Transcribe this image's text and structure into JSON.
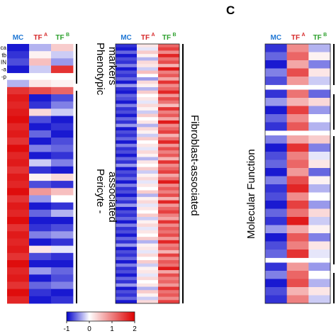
{
  "chart_data": {
    "type": "heatmap",
    "panel_letter": "C",
    "columns": [
      {
        "main": "MC",
        "sup": "",
        "color": "#1f77d4"
      },
      {
        "main": "TF",
        "sup": "A",
        "color": "#d62728"
      },
      {
        "main": "TF",
        "sup": "B",
        "color": "#2ca02c"
      }
    ],
    "row_labels_left": [
      "ca",
      "tb",
      "IN",
      "-a",
      "-p"
    ],
    "group_labels": {
      "phenotypic": "Phenotypic markers",
      "pericyte": "Pericyte - associated",
      "fibroblast": "Fibroblast-associated",
      "molecular": "Molecular Function"
    },
    "colorbar": {
      "colors": [
        "#0000cc",
        "#ffffff",
        "#dd0000"
      ],
      "range": [
        -1,
        2
      ],
      "ticks": [
        -1,
        0,
        1,
        2
      ]
    },
    "panels": [
      {
        "id": "left",
        "values": [
          [
            -0.9,
            -0.3,
            0.4
          ],
          [
            -0.8,
            0.1,
            -0.2
          ],
          [
            -0.7,
            0.5,
            -0.4
          ],
          [
            -0.9,
            -0.2,
            1.6
          ],
          [
            -0.3,
            0.2,
            0.1
          ],
          [
            1.6,
            1.4,
            1.2
          ],
          [
            1.8,
            -0.9,
            -0.7
          ],
          [
            1.7,
            -0.8,
            -0.5
          ],
          [
            1.8,
            0.3,
            -0.2
          ],
          [
            1.9,
            -0.7,
            -0.9
          ],
          [
            1.7,
            -0.9,
            -0.8
          ],
          [
            1.8,
            -0.6,
            -0.9
          ],
          [
            1.6,
            -0.9,
            -0.7
          ],
          [
            1.9,
            -0.5,
            -0.6
          ],
          [
            1.7,
            -0.9,
            -0.8
          ],
          [
            1.8,
            -0.2,
            -0.5
          ],
          [
            1.6,
            -0.8,
            -0.9
          ],
          [
            1.8,
            0.1,
            0.3
          ],
          [
            1.7,
            -0.7,
            -0.8
          ],
          [
            1.9,
            0.8,
            0.5
          ],
          [
            1.6,
            -0.4,
            0.0
          ],
          [
            1.8,
            -0.9,
            -0.8
          ],
          [
            1.7,
            -0.6,
            -0.3
          ],
          [
            1.9,
            -0.9,
            -0.9
          ],
          [
            1.6,
            -0.8,
            -0.7
          ],
          [
            1.8,
            -0.5,
            -0.4
          ],
          [
            1.7,
            -0.9,
            -0.8
          ],
          [
            1.8,
            0.2,
            -0.1
          ],
          [
            1.6,
            -0.7,
            -0.8
          ],
          [
            1.9,
            -0.9,
            -0.9
          ],
          [
            1.7,
            -0.4,
            -0.6
          ],
          [
            1.8,
            -0.9,
            -0.7
          ],
          [
            1.6,
            -0.6,
            -0.5
          ],
          [
            1.9,
            -0.8,
            -0.9
          ],
          [
            1.7,
            -0.9,
            -0.8
          ]
        ]
      },
      {
        "id": "middle",
        "values": [
          [
            -0.8,
            0.2,
            1.2
          ],
          [
            -0.9,
            -0.1,
            1.5
          ],
          [
            -0.6,
            0.4,
            0.9
          ],
          [
            -0.9,
            0.1,
            1.7
          ],
          [
            -0.7,
            -0.3,
            1.1
          ],
          [
            -0.8,
            0.3,
            1.4
          ],
          [
            -0.5,
            0.2,
            0.6
          ],
          [
            -0.9,
            -0.2,
            1.8
          ],
          [
            -0.7,
            0.5,
            1.0
          ],
          [
            -0.8,
            0.0,
            1.3
          ],
          [
            -0.6,
            -0.4,
            0.7
          ],
          [
            -0.9,
            0.3,
            1.6
          ],
          [
            -0.4,
            0.1,
            0.9
          ],
          [
            -0.8,
            -0.3,
            1.2
          ],
          [
            -0.9,
            0.4,
            1.7
          ],
          [
            -0.6,
            0.0,
            0.8
          ],
          [
            -0.7,
            0.2,
            1.4
          ],
          [
            -0.9,
            -0.1,
            1.1
          ],
          [
            -0.5,
            0.3,
            0.5
          ],
          [
            -0.8,
            0.1,
            1.6
          ],
          [
            -0.7,
            -0.2,
            1.0
          ],
          [
            -0.9,
            0.4,
            1.3
          ],
          [
            -0.6,
            0.0,
            0.7
          ],
          [
            -0.8,
            0.2,
            1.8
          ],
          [
            -0.4,
            -0.3,
            0.9
          ],
          [
            -0.9,
            0.3,
            1.2
          ],
          [
            -0.7,
            0.1,
            1.5
          ],
          [
            -0.8,
            -0.2,
            0.6
          ],
          [
            -0.6,
            0.4,
            1.1
          ],
          [
            -0.9,
            0.0,
            1.7
          ],
          [
            -0.5,
            0.2,
            0.8
          ],
          [
            -0.8,
            -0.1,
            1.4
          ],
          [
            -0.7,
            0.3,
            1.0
          ],
          [
            -0.9,
            0.1,
            1.3
          ],
          [
            -0.6,
            -0.3,
            0.6
          ],
          [
            -0.8,
            0.2,
            1.6
          ],
          [
            -0.4,
            0.0,
            0.9
          ],
          [
            -0.9,
            0.4,
            1.2
          ],
          [
            -0.7,
            -0.2,
            1.5
          ],
          [
            -0.8,
            0.1,
            0.7
          ],
          [
            -0.6,
            0.3,
            1.1
          ],
          [
            -0.9,
            -0.1,
            1.8
          ],
          [
            -0.5,
            0.2,
            0.9
          ],
          [
            -0.8,
            0.0,
            1.3
          ],
          [
            -0.7,
            0.4,
            1.0
          ],
          [
            -0.9,
            -0.3,
            1.4
          ],
          [
            -0.6,
            0.1,
            0.6
          ],
          [
            -0.8,
            0.3,
            1.7
          ],
          [
            -0.4,
            -0.1,
            0.8
          ],
          [
            -0.9,
            0.2,
            1.2
          ],
          [
            -0.7,
            0.0,
            1.5
          ],
          [
            -0.8,
            0.4,
            1.0
          ],
          [
            -0.6,
            -0.2,
            0.7
          ],
          [
            -0.9,
            0.1,
            1.6
          ],
          [
            -0.5,
            0.3,
            0.9
          ],
          [
            -0.8,
            -0.1,
            1.3
          ],
          [
            -0.7,
            0.2,
            1.1
          ],
          [
            -0.9,
            0.0,
            1.4
          ],
          [
            -0.6,
            0.4,
            0.8
          ],
          [
            -0.8,
            -0.3,
            1.7
          ],
          [
            -0.4,
            0.1,
            1.0
          ],
          [
            -0.9,
            0.2,
            1.2
          ],
          [
            -0.7,
            -0.1,
            0.6
          ],
          [
            -0.8,
            0.3,
            1.5
          ],
          [
            -0.6,
            0.0,
            0.9
          ],
          [
            -0.9,
            0.4,
            1.3
          ],
          [
            -0.5,
            -0.2,
            1.1
          ],
          [
            -0.8,
            0.1,
            1.8
          ],
          [
            -0.7,
            0.2,
            0.7
          ],
          [
            -0.9,
            -0.1,
            1.4
          ],
          [
            -0.6,
            0.3,
            1.0
          ],
          [
            -0.8,
            0.0,
            1.2
          ],
          [
            -0.4,
            0.2,
            0.8
          ],
          [
            -0.9,
            -0.3,
            1.6
          ],
          [
            -0.7,
            0.4,
            1.1
          ],
          [
            -0.8,
            0.1,
            1.3
          ],
          [
            -0.6,
            -0.2,
            0.9
          ],
          [
            -0.9,
            0.3,
            1.5
          ]
        ]
      },
      {
        "id": "right",
        "values": [
          [
            -0.8,
            0.9,
            -0.3
          ],
          [
            -0.6,
            1.2,
            0.1
          ],
          [
            -0.9,
            0.7,
            -0.5
          ],
          [
            -0.5,
            1.4,
            0.2
          ],
          [
            -0.7,
            0.8,
            -0.2
          ],
          [
            -0.8,
            1.1,
            -0.6
          ],
          [
            -0.4,
            0.6,
            0.3
          ],
          [
            -0.9,
            1.5,
            -0.4
          ],
          [
            -0.6,
            0.9,
            0.0
          ],
          [
            -0.8,
            1.3,
            -0.3
          ],
          [
            -0.5,
            0.7,
            0.4
          ],
          [
            -0.9,
            1.6,
            -0.5
          ],
          [
            -0.7,
            1.0,
            -0.1
          ],
          [
            -0.6,
            1.2,
            0.2
          ],
          [
            -0.9,
            0.8,
            -0.6
          ],
          [
            -0.5,
            1.4,
            0.1
          ],
          [
            -0.8,
            1.7,
            -0.3
          ],
          [
            -0.7,
            0.9,
            0.0
          ],
          [
            -0.9,
            1.5,
            -0.4
          ],
          [
            -0.6,
            1.1,
            0.3
          ],
          [
            -0.8,
            1.8,
            -0.2
          ],
          [
            -0.4,
            0.7,
            0.1
          ],
          [
            -0.9,
            1.3,
            -0.5
          ],
          [
            -0.7,
            1.0,
            0.2
          ],
          [
            -0.6,
            1.6,
            -0.1
          ],
          [
            -0.8,
            0.8,
            -0.4
          ],
          [
            -0.5,
            1.2,
            0.0
          ],
          [
            -0.9,
            1.4,
            -0.3
          ],
          [
            -0.7,
            0.6,
            0.2
          ],
          [
            -0.8,
            1.0,
            -0.2
          ]
        ]
      }
    ]
  }
}
